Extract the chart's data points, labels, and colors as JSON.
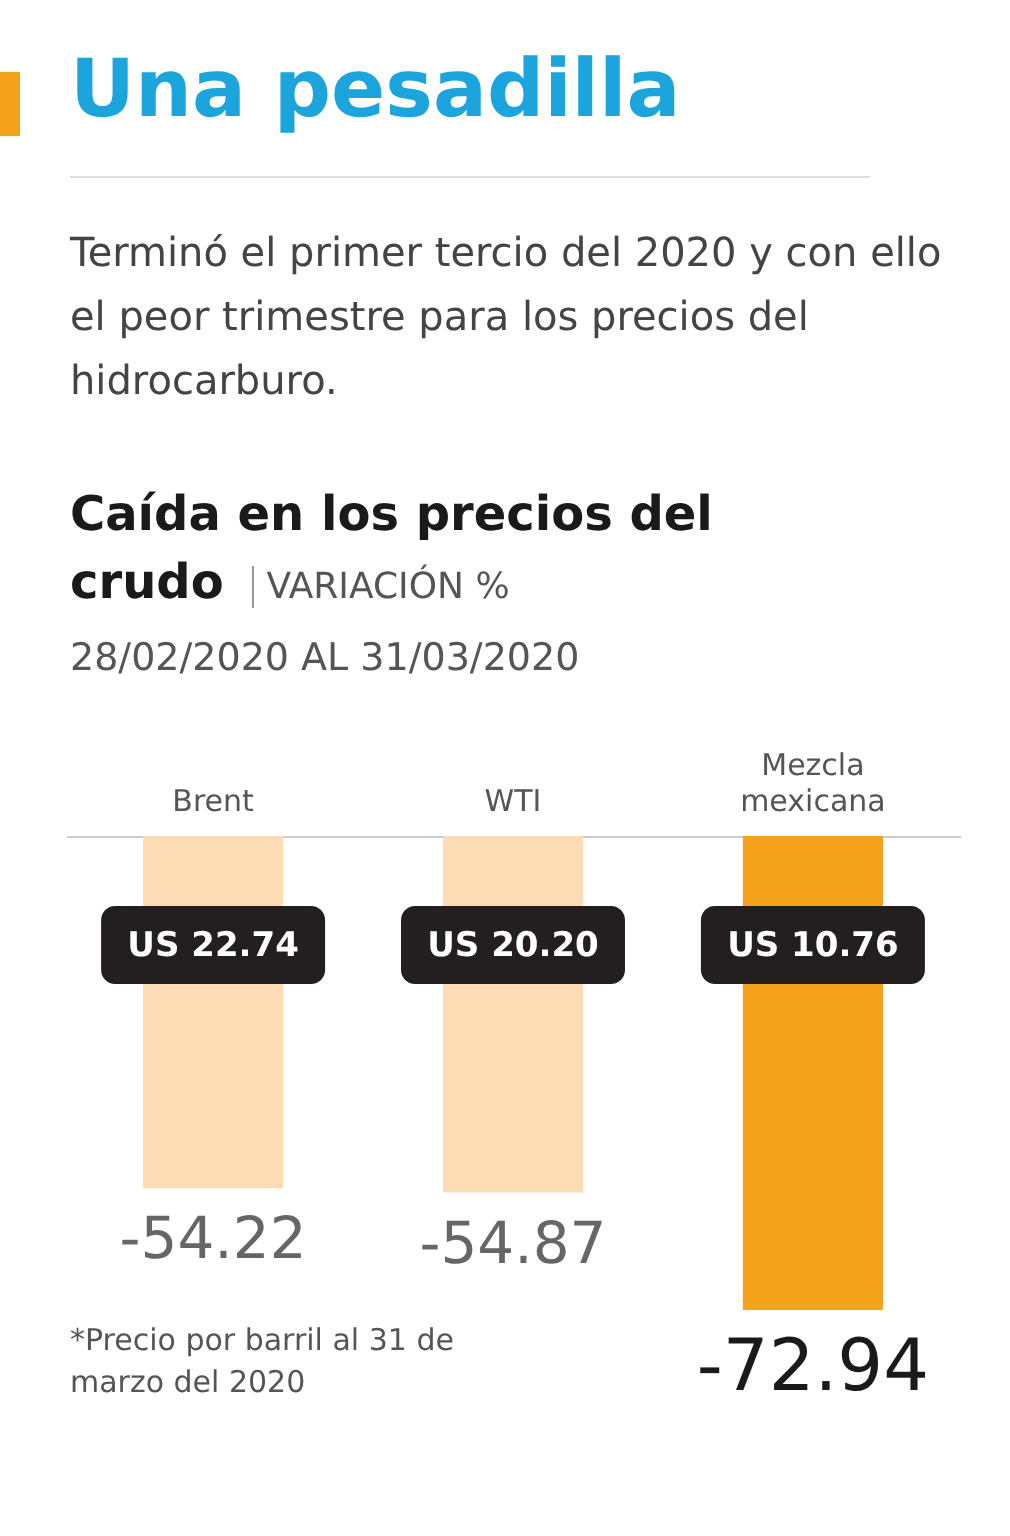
{
  "chart_data": {
    "type": "bar",
    "title": "Una pesadilla",
    "subtitle": "Terminó el primer tercio del 2020 y con ello el peor trimestre para los precios del hidrocarburo.",
    "ylabel": "VARIACIÓN %",
    "categories": [
      "Brent",
      "WTI",
      "Mezcla mexicana"
    ],
    "values": [
      -54.22,
      -54.87,
      -72.94
    ],
    "colors": [
      "#fddcb5",
      "#fddcb5",
      "#f5a31a"
    ],
    "data_labels": true,
    "annotations": [
      "Caída en los precios del crudo",
      "28/02/2020 AL 31/03/2020",
      "US 22.74",
      "US 20.20",
      "US 10.76",
      "*Precio por barril al 31 de marzo del 2020"
    ]
  }
}
